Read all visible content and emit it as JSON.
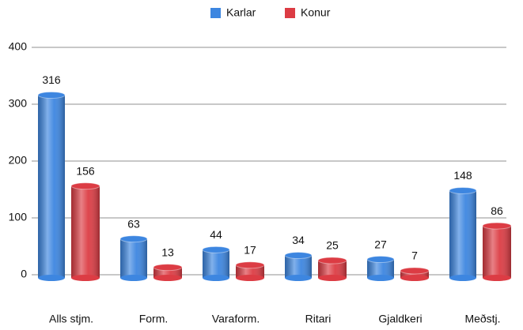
{
  "chart_data": {
    "type": "bar",
    "categories": [
      "Alls stjm.",
      "Form.",
      "Varaform.",
      "Ritari",
      "Gjaldkeri",
      "Meðstj."
    ],
    "series": [
      {
        "name": "Karlar",
        "color": "#3d86e0",
        "values": [
          316,
          63,
          44,
          34,
          27,
          148
        ]
      },
      {
        "name": "Konur",
        "color": "#dc3c44",
        "values": [
          156,
          13,
          17,
          25,
          7,
          86
        ]
      }
    ],
    "ylim": [
      0,
      400
    ],
    "yticks": [
      0,
      100,
      200,
      300,
      400
    ],
    "grid": true,
    "legend": "top"
  }
}
